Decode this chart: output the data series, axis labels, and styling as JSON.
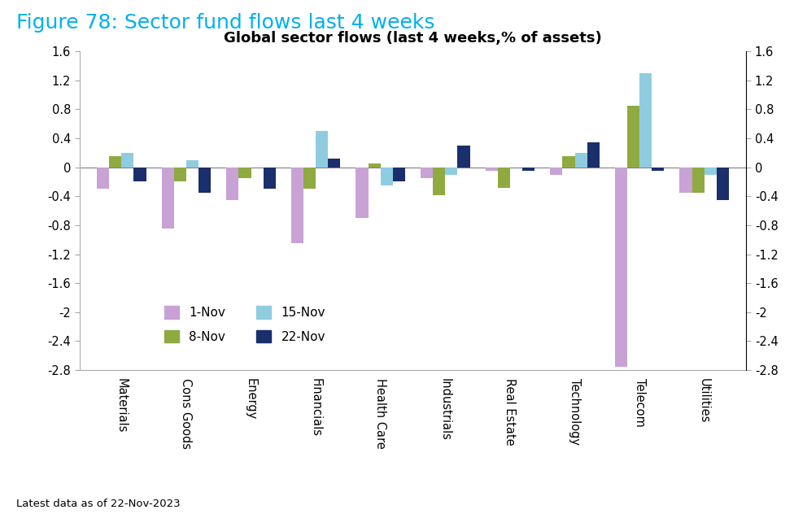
{
  "title": "Figure 78: Sector fund flows last 4 weeks",
  "chart_title": "Global sector flows (last 4 weeks,% of assets)",
  "categories": [
    "Materials",
    "Cons Goods",
    "Energy",
    "Financials",
    "Health Care",
    "Industrials",
    "Real Estate",
    "Technology",
    "Telecom",
    "Utilities"
  ],
  "series": {
    "1-Nov": [
      -0.3,
      -0.85,
      -0.45,
      -1.05,
      -0.7,
      -0.15,
      -0.05,
      -0.1,
      -2.75,
      -0.35
    ],
    "8-Nov": [
      0.15,
      -0.2,
      -0.15,
      -0.3,
      0.05,
      -0.38,
      -0.28,
      0.15,
      0.85,
      -0.35
    ],
    "15-Nov": [
      0.2,
      0.1,
      0.0,
      0.5,
      -0.25,
      -0.1,
      0.0,
      0.2,
      1.3,
      -0.1
    ],
    "22-Nov": [
      -0.2,
      -0.35,
      -0.3,
      0.12,
      -0.2,
      0.3,
      -0.05,
      0.35,
      -0.05,
      -0.45
    ]
  },
  "colors": {
    "1-Nov": "#c8a2d4",
    "8-Nov": "#8faa40",
    "15-Nov": "#90cce0",
    "22-Nov": "#1a2f6b"
  },
  "ylim": [
    -2.8,
    1.6
  ],
  "yticks": [
    -2.8,
    -2.4,
    -2.0,
    -1.6,
    -1.2,
    -0.8,
    -0.4,
    0.0,
    0.4,
    0.8,
    1.2,
    1.6
  ],
  "footer": "Latest data as of 22-Nov-2023",
  "background_color": "#ffffff",
  "title_color": "#00b0f0",
  "chart_title_fontsize": 13,
  "title_fontsize": 18,
  "bar_width": 0.19
}
